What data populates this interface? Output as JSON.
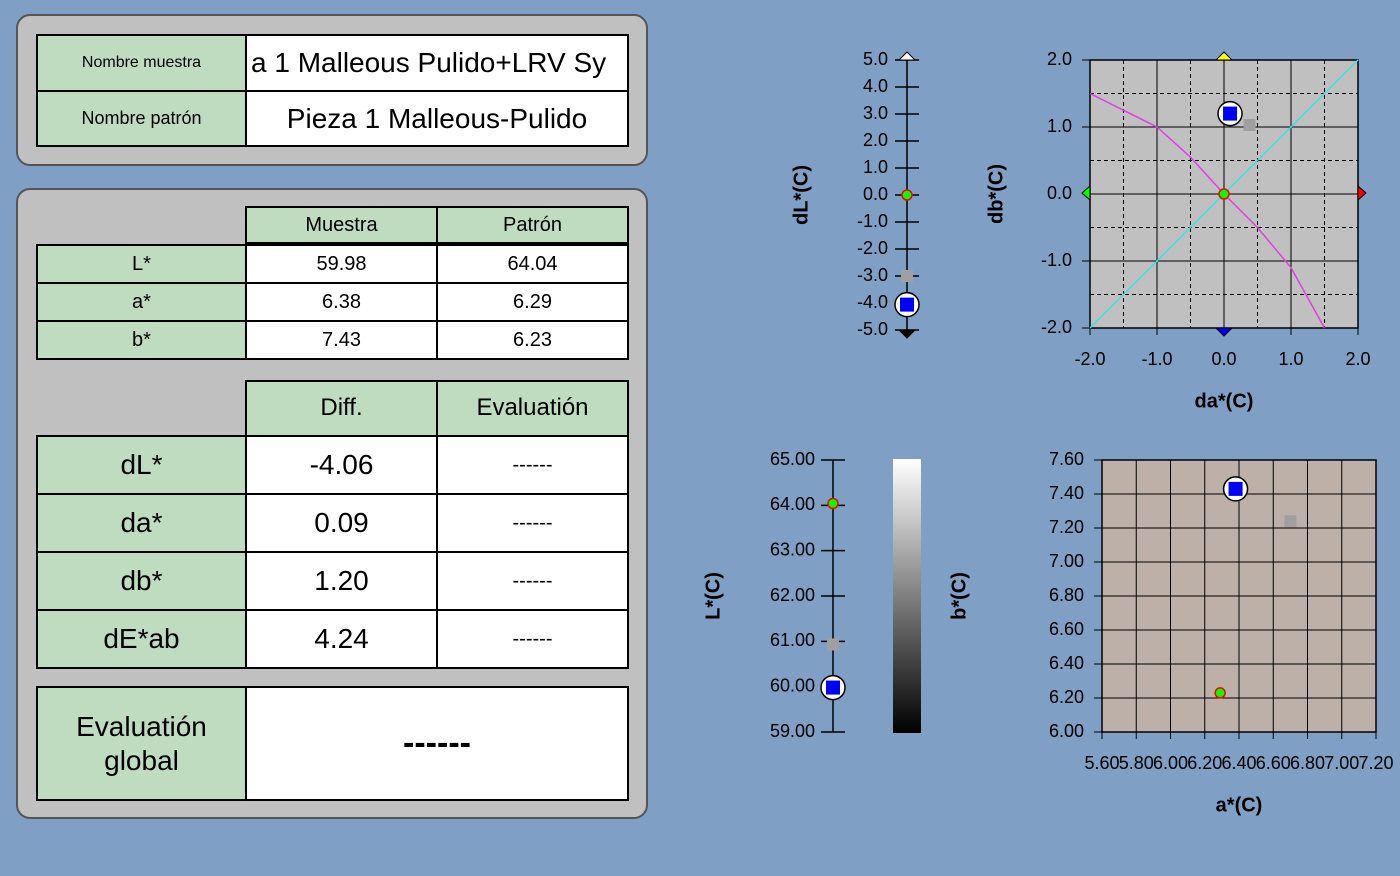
{
  "sample_name": {
    "label": "Nombre muestra",
    "value": "a 1 Malleous Pulido+LRV Sy"
  },
  "standard_name": {
    "label": "Nombre patrón",
    "value": "Pieza 1 Malleous-Pulido"
  },
  "color_table": {
    "columns": [
      "Muestra",
      "Patrón"
    ],
    "rows": [
      {
        "label": "L*",
        "cells": [
          "59.98",
          "64.04"
        ]
      },
      {
        "label": "a*",
        "cells": [
          "6.38",
          "6.29"
        ]
      },
      {
        "label": "b*",
        "cells": [
          "7.43",
          "6.23"
        ]
      }
    ]
  },
  "diff_table": {
    "columns": [
      "Diff.",
      "Evaluatión"
    ],
    "rows": [
      {
        "label": "dL*",
        "cells": [
          "-4.06",
          "------"
        ]
      },
      {
        "label": "da*",
        "cells": [
          "0.09",
          "------"
        ]
      },
      {
        "label": "db*",
        "cells": [
          "1.20",
          "------"
        ]
      },
      {
        "label": "dE*ab",
        "cells": [
          "4.24",
          "------"
        ]
      }
    ]
  },
  "global_evaluation": {
    "label": "Evaluatión global",
    "value": "------"
  },
  "chart_data": [
    {
      "type": "scatter",
      "ylabel": "dL*(C)",
      "ylim": [
        -5,
        5
      ],
      "yticks": [
        {
          "value": -5,
          "label": "-5.0"
        },
        {
          "value": -4,
          "label": "-4.0"
        },
        {
          "value": -3,
          "label": "-3.0"
        },
        {
          "value": -2,
          "label": "-2.0"
        },
        {
          "value": -1,
          "label": "-1.0"
        },
        {
          "value": 0,
          "label": "0.0"
        },
        {
          "value": 1,
          "label": "1.0"
        },
        {
          "value": 2,
          "label": "2.0"
        },
        {
          "value": 3,
          "label": "3.0"
        },
        {
          "value": 4,
          "label": "4.0"
        },
        {
          "value": 5,
          "label": "5.0"
        }
      ],
      "series": [
        {
          "color": "#00ff00",
          "marker": "dot",
          "values": [
            0
          ]
        },
        {
          "color": "#a0a0a0",
          "marker": "square",
          "values": [
            -3.0
          ]
        },
        {
          "color": "#0000ff",
          "marker": "ringed-square",
          "values": [
            -4.06
          ]
        }
      ]
    },
    {
      "type": "scatter",
      "xlabel": "da*(C)",
      "ylabel": "db*(C)",
      "xlim": [
        -2,
        2
      ],
      "ylim": [
        -2,
        2
      ],
      "xticks": [
        {
          "value": -2,
          "label": "-2.0"
        },
        {
          "value": -1,
          "label": "-1.0"
        },
        {
          "value": 0,
          "label": "0.0"
        },
        {
          "value": 1,
          "label": "1.0"
        },
        {
          "value": 2,
          "label": "2.0"
        }
      ],
      "yticks": [
        {
          "value": -2,
          "label": "-2.0"
        },
        {
          "value": -1,
          "label": "-1.0"
        },
        {
          "value": 0,
          "label": "0.0"
        },
        {
          "value": 1,
          "label": "1.0"
        },
        {
          "value": 2,
          "label": "2.0"
        }
      ],
      "grid": true,
      "background": "#c0c0c0",
      "series": [
        {
          "color": "#40e0e0",
          "marker": "line",
          "x": [
            -2,
            2
          ],
          "values": [
            -2,
            2
          ]
        },
        {
          "color": "#e040e0",
          "marker": "line",
          "x": [
            -2,
            -1,
            -0.5,
            0,
            0.5,
            1,
            1.5
          ],
          "values": [
            1.5,
            1.0,
            0.55,
            0,
            -0.5,
            -1.1,
            -2
          ]
        },
        {
          "color": "#00ff00",
          "marker": "dot",
          "x": [
            0
          ],
          "values": [
            0
          ]
        },
        {
          "color": "#a0a0a0",
          "marker": "square",
          "x": [
            0.38
          ],
          "values": [
            1.03
          ]
        },
        {
          "color": "#0000ff",
          "marker": "ringed-square",
          "x": [
            0.09
          ],
          "values": [
            1.2
          ]
        }
      ]
    },
    {
      "type": "scatter",
      "ylabel": "L*(C)",
      "ylim": [
        59,
        65
      ],
      "yticks": [
        {
          "value": 59,
          "label": "59.00"
        },
        {
          "value": 60,
          "label": "60.00"
        },
        {
          "value": 61,
          "label": "61.00"
        },
        {
          "value": 62,
          "label": "62.00"
        },
        {
          "value": 63,
          "label": "63.00"
        },
        {
          "value": 64,
          "label": "64.00"
        },
        {
          "value": 65,
          "label": "65.00"
        }
      ],
      "series": [
        {
          "color": "#00ff00",
          "marker": "dot",
          "values": [
            64.04
          ]
        },
        {
          "color": "#a0a0a0",
          "marker": "square",
          "values": [
            60.93
          ]
        },
        {
          "color": "#0000ff",
          "marker": "ringed-square",
          "values": [
            59.98
          ]
        }
      ]
    },
    {
      "type": "scatter",
      "xlabel": "a*(C)",
      "ylabel": "b*(C)",
      "xlim": [
        5.6,
        7.2
      ],
      "ylim": [
        6.0,
        7.6
      ],
      "xticks": [
        {
          "value": 5.6,
          "label": "5.60"
        },
        {
          "value": 5.8,
          "label": "5.80"
        },
        {
          "value": 6.0,
          "label": "6.00"
        },
        {
          "value": 6.2,
          "label": "6.20"
        },
        {
          "value": 6.4,
          "label": "6.40"
        },
        {
          "value": 6.6,
          "label": "6.60"
        },
        {
          "value": 6.8,
          "label": "6.80"
        },
        {
          "value": 7.0,
          "label": "7.00"
        },
        {
          "value": 7.2,
          "label": "7.20"
        }
      ],
      "yticks": [
        {
          "value": 6.0,
          "label": "6.00"
        },
        {
          "value": 6.2,
          "label": "6.20"
        },
        {
          "value": 6.4,
          "label": "6.40"
        },
        {
          "value": 6.6,
          "label": "6.60"
        },
        {
          "value": 6.8,
          "label": "6.80"
        },
        {
          "value": 7.0,
          "label": "7.00"
        },
        {
          "value": 7.2,
          "label": "7.20"
        },
        {
          "value": 7.4,
          "label": "7.40"
        },
        {
          "value": 7.6,
          "label": "7.60"
        }
      ],
      "grid": true,
      "background": "#bcb0a8",
      "series": [
        {
          "color": "#00ff00",
          "marker": "dot",
          "x": [
            6.29
          ],
          "values": [
            6.23
          ]
        },
        {
          "color": "#a0a0a0",
          "marker": "square",
          "x": [
            6.7
          ],
          "values": [
            7.24
          ]
        },
        {
          "color": "#0000ff",
          "marker": "ringed-square",
          "x": [
            6.38
          ],
          "values": [
            7.43
          ]
        }
      ]
    }
  ]
}
